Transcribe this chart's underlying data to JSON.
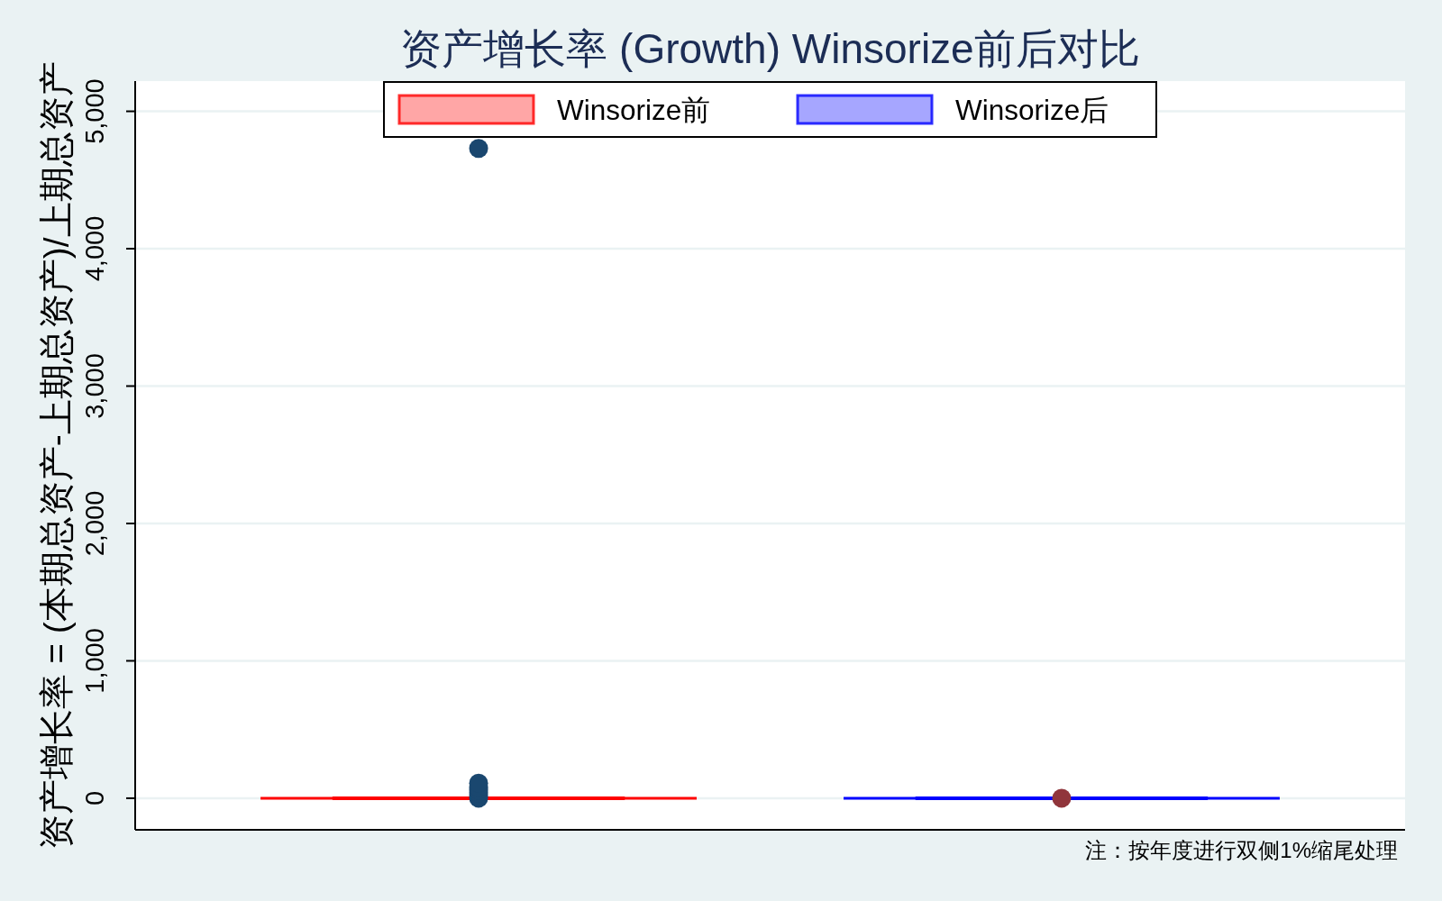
{
  "chart_data": {
    "type": "box",
    "title": "资产增长率 (Growth) Winsorize前后对比",
    "ylabel": "资产增长率 = (本期总资产-上期总资产)/上期总资产",
    "annotations": [
      "注：按年度进行双侧1%缩尾处理"
    ],
    "categories": [
      null
    ],
    "series": [
      {
        "name": "Winsorize前",
        "color": "#ff0000",
        "boxes": [
          {
            "low": 0,
            "q1": 0,
            "median": 0,
            "q3": 0,
            "high": 0,
            "outliers": [
              0,
              20,
              40,
              60,
              80,
              110,
              4730
            ]
          }
        ]
      },
      {
        "name": "Winsorize后",
        "color": "#0000ff",
        "boxes": [
          {
            "low": 0,
            "q1": 0,
            "median": 0,
            "q3": 0,
            "high": 0,
            "outliers": [
              0
            ]
          }
        ]
      }
    ],
    "ylim": [
      -230,
      5220
    ],
    "yticks": [
      0,
      {
        "value": 1000,
        "label": "1,000"
      },
      {
        "value": 2000,
        "label": "2,000"
      },
      {
        "value": 3000,
        "label": "3,000"
      },
      {
        "value": 4000,
        "label": "4,000"
      },
      {
        "value": 5000,
        "label": "5,000"
      }
    ],
    "grid": "y",
    "legend": "top"
  }
}
